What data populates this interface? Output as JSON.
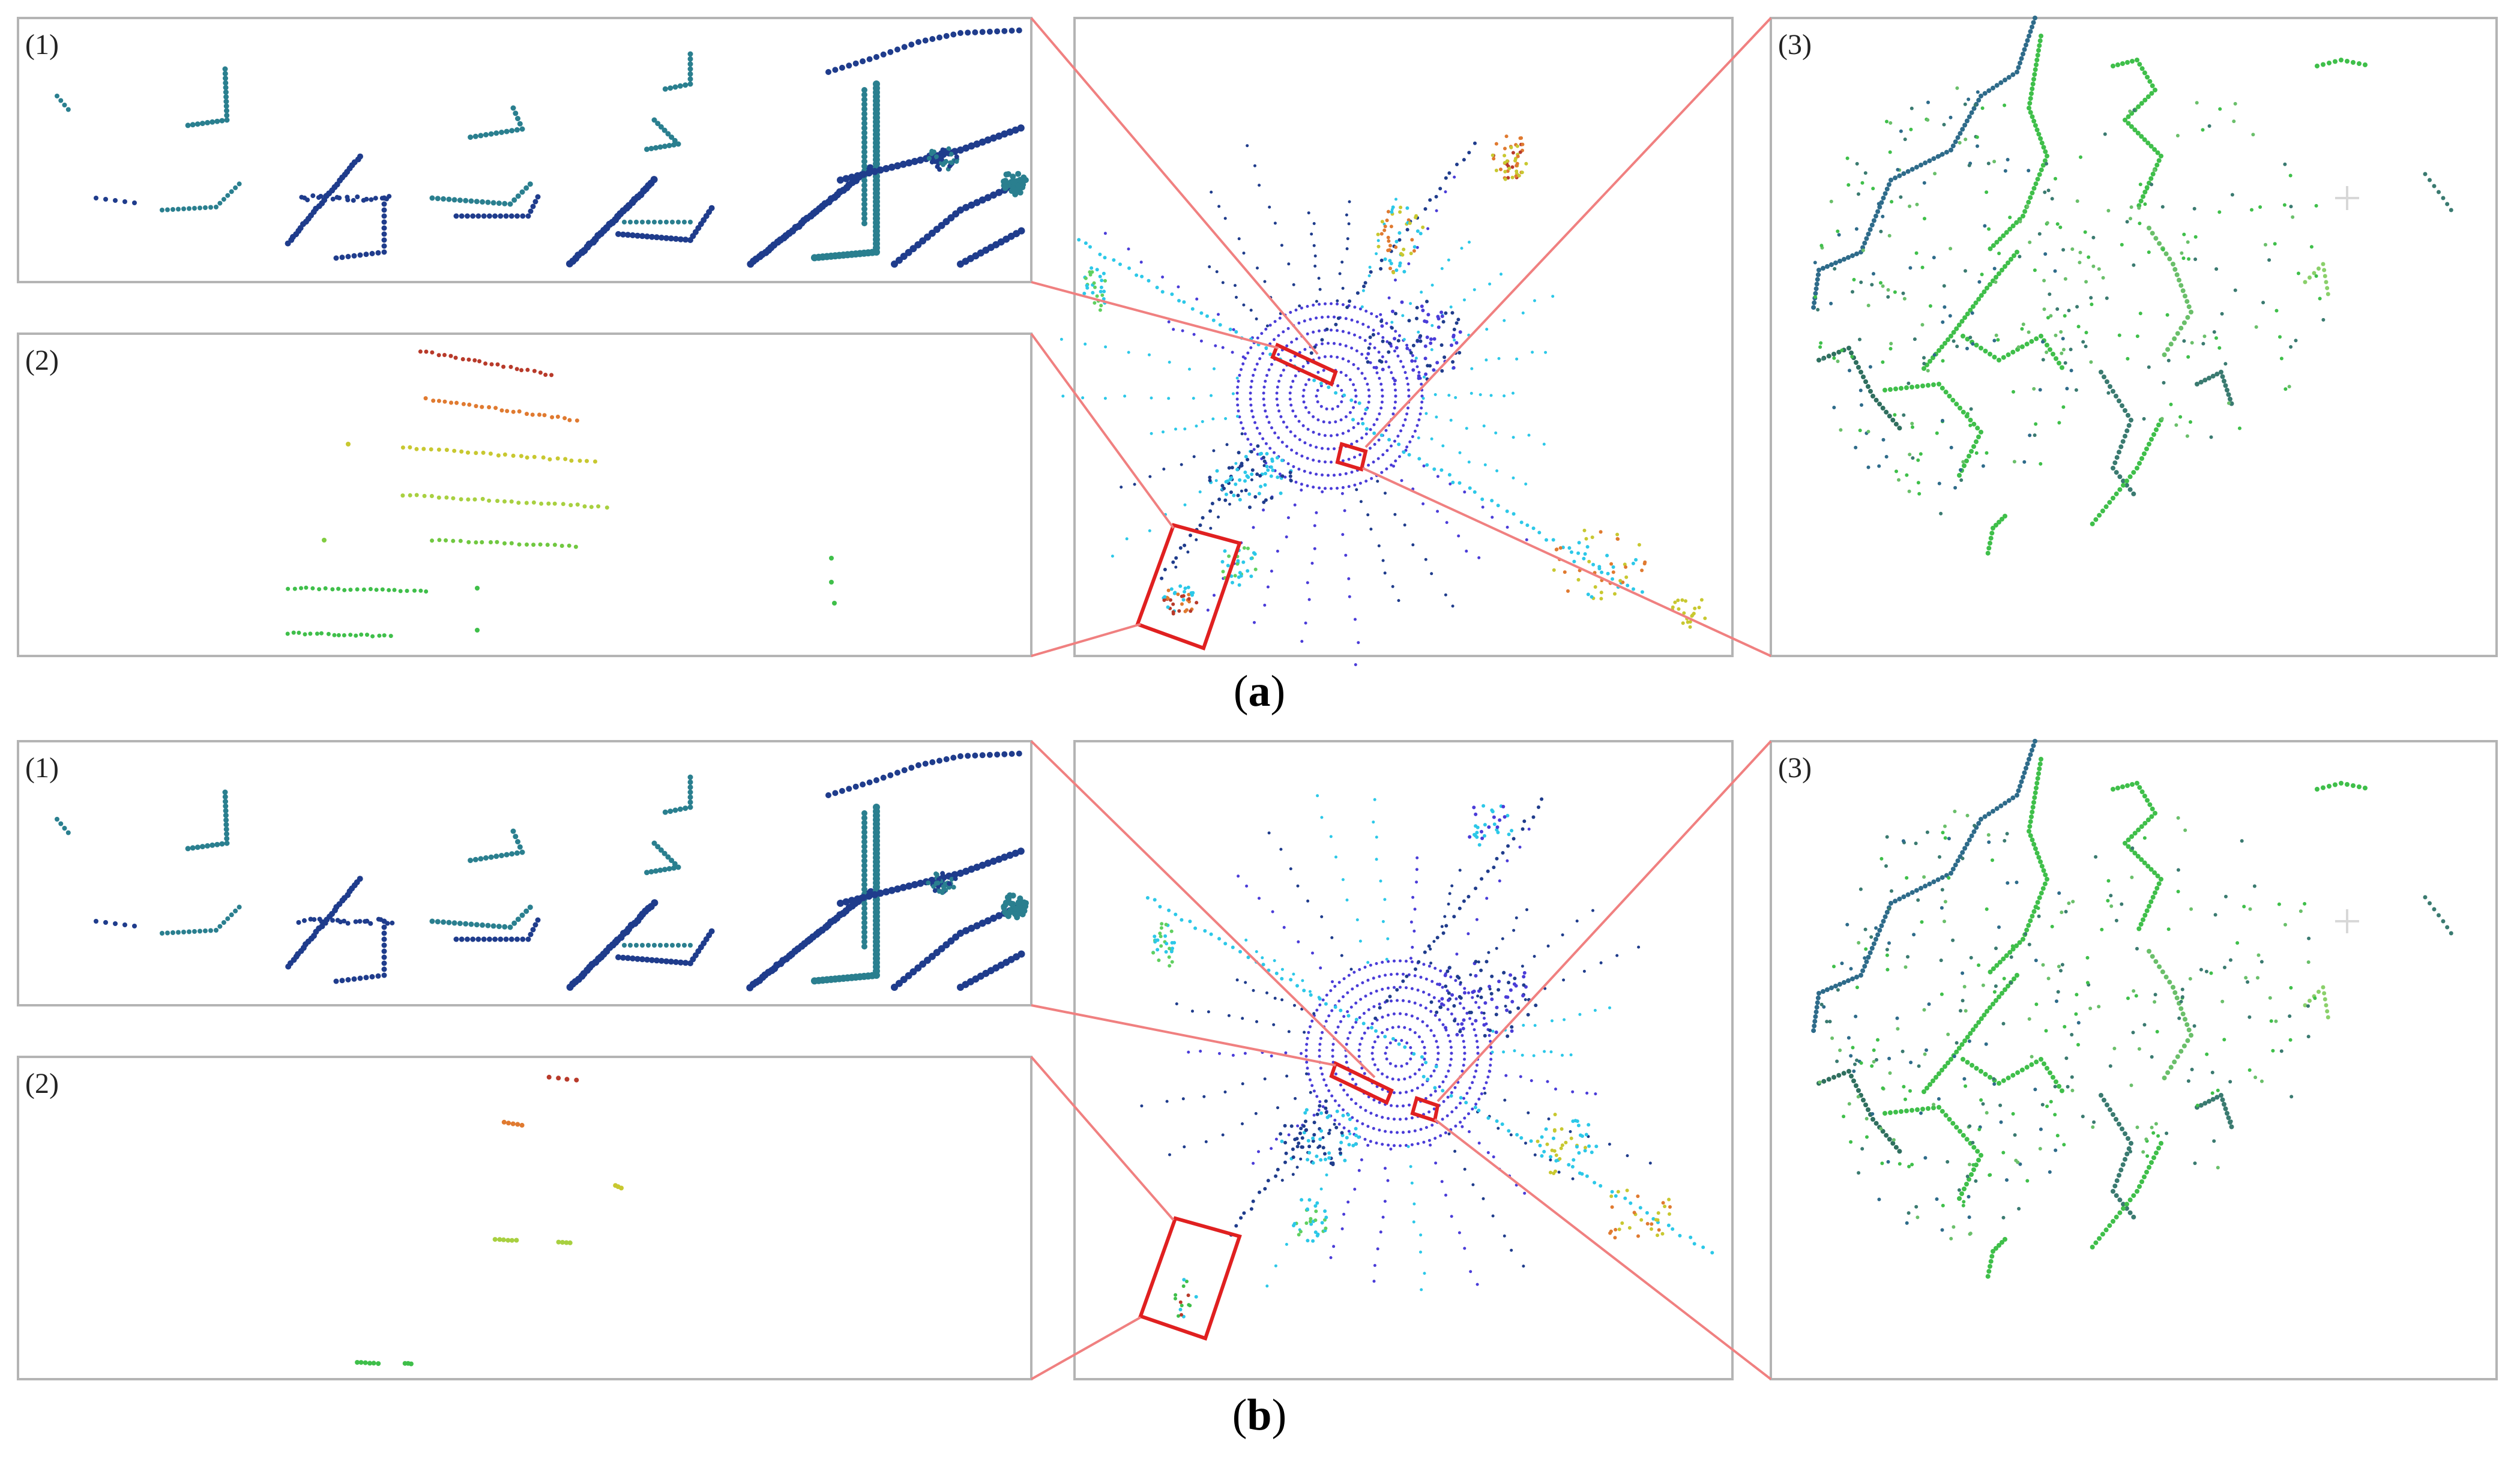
{
  "panel_labels": [
    "(1)",
    "(2)",
    "(3)"
  ],
  "captions": {
    "a": {
      "open": "(",
      "letter": "a",
      "close": ")"
    },
    "b": {
      "open": "(",
      "letter": "b",
      "close": ")"
    }
  },
  "colors": {
    "frame": "#b4b4b4",
    "connector": "#f08080",
    "highlight_box": "#e02020",
    "points_blue": "#1f3c8c",
    "points_teal": "#2a7f8f",
    "points_green": "#3fbf4a",
    "points_yellow": "#c8c830",
    "points_orange": "#e07a30",
    "points_red": "#b83a2a",
    "points_cyan": "#2cc8e8",
    "points_violet": "#4a3cd8"
  }
}
